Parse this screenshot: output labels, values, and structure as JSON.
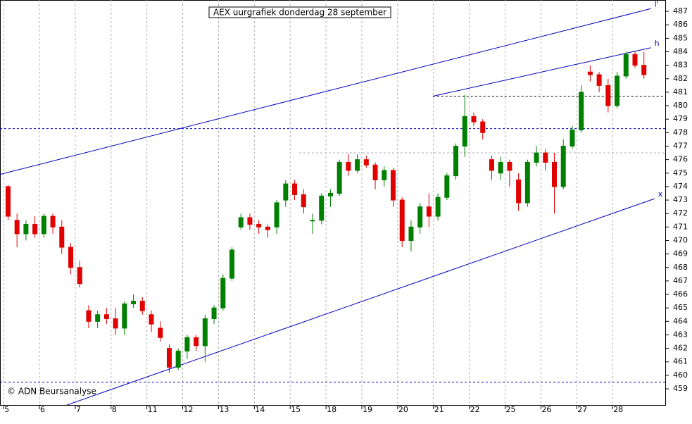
{
  "chart_data": {
    "type": "candlestick",
    "title": "AEX uurgrafiek donderdag 28 september",
    "credit": "© ADN Beursanalyse",
    "xlim": [
      -0.1,
      18.47
    ],
    "ylim": [
      457.8,
      487.84
    ],
    "xticks": [
      {
        "value": 0,
        "label": "5"
      },
      {
        "value": 1,
        "label": "6"
      },
      {
        "value": 2,
        "label": "7"
      },
      {
        "value": 3,
        "label": "8"
      },
      {
        "value": 4,
        "label": "11"
      },
      {
        "value": 5,
        "label": "12"
      },
      {
        "value": 6,
        "label": "13"
      },
      {
        "value": 7,
        "label": "14"
      },
      {
        "value": 8,
        "label": "15"
      },
      {
        "value": 9,
        "label": "18"
      },
      {
        "value": 10,
        "label": "19"
      },
      {
        "value": 11,
        "label": "20"
      },
      {
        "value": 12,
        "label": "21"
      },
      {
        "value": 13,
        "label": "22"
      },
      {
        "value": 14,
        "label": "25"
      },
      {
        "value": 15,
        "label": "26"
      },
      {
        "value": 16,
        "label": "27"
      },
      {
        "value": 17,
        "label": "28"
      }
    ],
    "yticks": [
      459,
      460,
      461,
      462,
      463,
      464,
      465,
      466,
      467,
      468,
      469,
      470,
      471,
      472,
      473,
      474,
      475,
      476,
      477,
      478,
      479,
      480,
      481,
      482,
      483,
      484,
      485,
      486,
      487
    ],
    "up_color": "#008000",
    "down_color": "#e00000",
    "grid": true,
    "x": [
      0.125,
      0.375,
      0.625,
      0.875,
      1.125,
      1.375,
      1.625,
      1.875,
      2.125,
      2.375,
      2.625,
      2.875,
      3.125,
      3.375,
      3.625,
      3.875,
      4.125,
      4.375,
      4.625,
      4.875,
      5.125,
      5.375,
      5.625,
      5.875,
      6.125,
      6.375,
      6.625,
      6.875,
      7.125,
      7.375,
      7.625,
      7.875,
      8.125,
      8.375,
      8.625,
      8.875,
      9.125,
      9.375,
      9.625,
      9.875,
      10.125,
      10.375,
      10.625,
      10.875,
      11.125,
      11.375,
      11.625,
      11.875,
      12.125,
      12.375,
      12.625,
      12.875,
      13.125,
      13.375,
      13.625,
      13.875,
      14.125,
      14.375,
      14.625,
      14.875,
      15.125,
      15.375,
      15.625,
      15.875,
      16.125,
      16.375,
      16.625,
      16.875,
      17.125,
      17.375,
      17.625,
      17.875
    ],
    "ohlc": [
      [
        474,
        474.1,
        471.5,
        471.8
      ],
      [
        471.5,
        472,
        469.5,
        470.5
      ],
      [
        470.5,
        471.5,
        470,
        471.2
      ],
      [
        471.2,
        471.8,
        470.2,
        470.5
      ],
      [
        470.5,
        472,
        470.2,
        471.8
      ],
      [
        471.8,
        472,
        470.5,
        471
      ],
      [
        471,
        471.5,
        469,
        469.5
      ],
      [
        469.5,
        469.8,
        467.5,
        468
      ],
      [
        468,
        468.5,
        466.5,
        466.8
      ],
      [
        464.8,
        465.2,
        463.5,
        464
      ],
      [
        464,
        464.8,
        463.5,
        464.5
      ],
      [
        464.5,
        465,
        463.8,
        464.2
      ],
      [
        464.2,
        465,
        463,
        463.5
      ],
      [
        463.5,
        465.5,
        463,
        465.3
      ],
      [
        465.3,
        466,
        465,
        465.5
      ],
      [
        465.5,
        465.8,
        464.5,
        464.8
      ],
      [
        464.5,
        464.8,
        463.2,
        463.8
      ],
      [
        463.5,
        464,
        462.5,
        462.8
      ],
      [
        462,
        462.3,
        460.2,
        460.6
      ],
      [
        460.6,
        462,
        460.4,
        461.8
      ],
      [
        461.8,
        463,
        461.2,
        462.8
      ],
      [
        462.8,
        463,
        461.8,
        462.2
      ],
      [
        462.2,
        464.5,
        461,
        464.2
      ],
      [
        464.2,
        465.2,
        463.8,
        465
      ],
      [
        465,
        467.5,
        464.8,
        467.2
      ],
      [
        467.2,
        469.5,
        467,
        469.3
      ],
      [
        471,
        472,
        470.8,
        471.7
      ],
      [
        471.7,
        472,
        470.8,
        471.2
      ],
      [
        471.2,
        471.5,
        470.5,
        471
      ],
      [
        471,
        471.2,
        470.2,
        470.8
      ],
      [
        471,
        473,
        470.5,
        472.8
      ],
      [
        473,
        474.5,
        472.5,
        474.2
      ],
      [
        474.2,
        474.5,
        473,
        473.4
      ],
      [
        473.4,
        473.8,
        472,
        472.5
      ],
      [
        471.5,
        472,
        470.5,
        471.5
      ],
      [
        471.5,
        473.5,
        471.2,
        473.3
      ],
      [
        473.3,
        473.8,
        472.5,
        473.5
      ],
      [
        473.5,
        476,
        473.3,
        475.8
      ],
      [
        475.8,
        476.4,
        474.8,
        475.2
      ],
      [
        475.2,
        476.4,
        475,
        476
      ],
      [
        476,
        476.3,
        475.4,
        475.6
      ],
      [
        475.6,
        475.8,
        473.8,
        474.5
      ],
      [
        474.5,
        475.5,
        474,
        475.2
      ],
      [
        475.2,
        475.4,
        472.5,
        473
      ],
      [
        473,
        473.2,
        469.5,
        470
      ],
      [
        470,
        471.5,
        469.2,
        471
      ],
      [
        471,
        472.8,
        470.5,
        472.5
      ],
      [
        472.5,
        473.5,
        471,
        471.8
      ],
      [
        471.8,
        473.5,
        471.5,
        473.2
      ],
      [
        473.2,
        475,
        473,
        474.8
      ],
      [
        474.8,
        477.2,
        474.5,
        477
      ],
      [
        477,
        480.8,
        476.2,
        479.2
      ],
      [
        479.2,
        479.5,
        478.5,
        478.8
      ],
      [
        478.8,
        479,
        477.5,
        478
      ],
      [
        476,
        476.3,
        474.5,
        475.2
      ],
      [
        475,
        476.2,
        474.5,
        475.8
      ],
      [
        475.8,
        476,
        474,
        475.2
      ],
      [
        474.5,
        475,
        472.2,
        472.8
      ],
      [
        472.8,
        476,
        472.5,
        475.8
      ],
      [
        475.8,
        477,
        475.5,
        476.5
      ],
      [
        476.5,
        476.8,
        475.2,
        475.8
      ],
      [
        475.8,
        476.5,
        472,
        474
      ],
      [
        474,
        477.5,
        473.8,
        477
      ],
      [
        477,
        478.5,
        476.8,
        478.2
      ],
      [
        478.2,
        481.5,
        478,
        481
      ],
      [
        482.5,
        483,
        481.8,
        482.3
      ],
      [
        482.3,
        482.5,
        481,
        481.5
      ],
      [
        481.5,
        482,
        479.5,
        480
      ],
      [
        480,
        482.5,
        479.8,
        482.2
      ],
      [
        482.2,
        484,
        482,
        483.8
      ],
      [
        483.8,
        484,
        482.8,
        483
      ],
      [
        483,
        484,
        482,
        482.3
      ]
    ],
    "trend_lines": [
      {
        "label": "l'",
        "color": "#0000c0",
        "x": [
          -0.1,
          18.07
        ],
        "y": [
          474.9,
          487.2
        ]
      },
      {
        "label": "h",
        "color": "#0000c0",
        "x": [
          11.98,
          18.07
        ],
        "y": [
          480.7,
          484.3
        ]
      },
      {
        "label": "x",
        "color": "#0000c0",
        "x": [
          1.77,
          18.17
        ],
        "y": [
          457.8,
          473.1
        ]
      }
    ],
    "levels": [
      {
        "color": "#0000c0",
        "x": [
          -0.1,
          18.47
        ],
        "y": 478.3
      },
      {
        "color": "#0000c0",
        "x": [
          -0.1,
          18.47
        ],
        "y": 459.5
      },
      {
        "color": "#000000",
        "x": [
          11.98,
          18.47
        ],
        "y": 480.7
      },
      {
        "color": "#b0b0b0",
        "x": [
          8.25,
          18.47
        ],
        "y": 476.5
      }
    ]
  }
}
